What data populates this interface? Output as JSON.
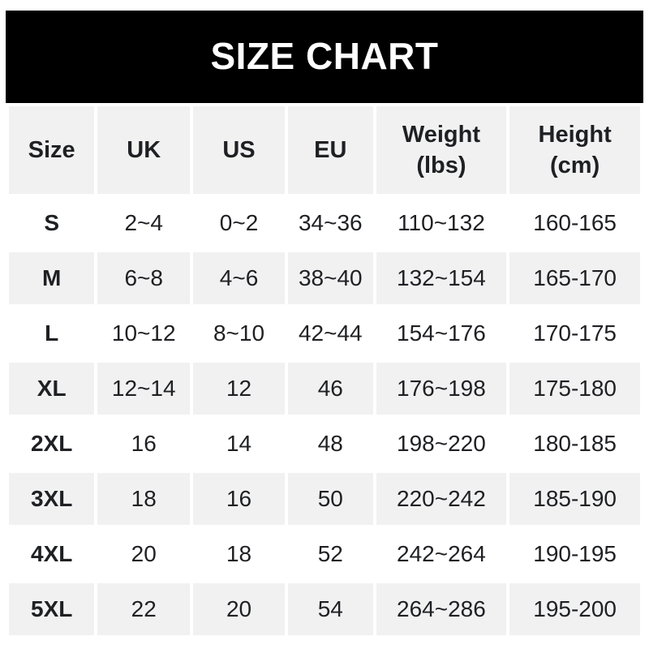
{
  "banner": {
    "title": "SIZE CHART"
  },
  "colors": {
    "banner_bg": "#000000",
    "banner_text": "#ffffff",
    "row_alt_bg": "#f1f1f2",
    "header_bg": "#f1f1f2",
    "text": "#1f2023",
    "page_bg": "#ffffff"
  },
  "chart_data": {
    "type": "table",
    "title": "SIZE CHART",
    "columns": [
      {
        "label": "Size"
      },
      {
        "label": "UK"
      },
      {
        "label": "US"
      },
      {
        "label": "EU"
      },
      {
        "label": "Weight",
        "sub": "(lbs)"
      },
      {
        "label": "Height",
        "sub": "(cm)"
      }
    ],
    "rows": [
      [
        "S",
        "2~4",
        "0~2",
        "34~36",
        "110~132",
        "160-165"
      ],
      [
        "M",
        "6~8",
        "4~6",
        "38~40",
        "132~154",
        "165-170"
      ],
      [
        "L",
        "10~12",
        "8~10",
        "42~44",
        "154~176",
        "170-175"
      ],
      [
        "XL",
        "12~14",
        "12",
        "46",
        "176~198",
        "175-180"
      ],
      [
        "2XL",
        "16",
        "14",
        "48",
        "198~220",
        "180-185"
      ],
      [
        "3XL",
        "18",
        "16",
        "50",
        "220~242",
        "185-190"
      ],
      [
        "4XL",
        "20",
        "18",
        "52",
        "242~264",
        "190-195"
      ],
      [
        "5XL",
        "22",
        "20",
        "54",
        "264~286",
        "195-200"
      ]
    ],
    "layout": {
      "legend": "none",
      "grid": "off",
      "row_striping": "alternate white/gray starting white"
    }
  }
}
